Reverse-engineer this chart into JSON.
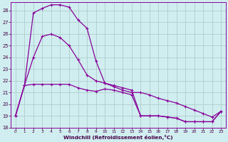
{
  "bg_color": "#d0eef0",
  "grid_color": "#b0cccc",
  "line_color": "#880099",
  "xlabel": "Windchill (Refroidissement éolien,°C)",
  "xlim": [
    -0.5,
    23.5
  ],
  "ylim": [
    18,
    28.7
  ],
  "yticks": [
    18,
    19,
    20,
    21,
    22,
    23,
    24,
    25,
    26,
    27,
    28
  ],
  "xticks": [
    0,
    1,
    2,
    3,
    4,
    5,
    6,
    7,
    8,
    9,
    10,
    11,
    12,
    13,
    14,
    15,
    16,
    17,
    18,
    19,
    20,
    21,
    22,
    23
  ],
  "series": [
    [
      19.0,
      21.6,
      21.7,
      21.7,
      21.7,
      21.7,
      21.7,
      21.4,
      21.2,
      21.1,
      21.3,
      21.2,
      21.0,
      20.8,
      19.0,
      19.0,
      19.0,
      18.9,
      18.8,
      18.5,
      18.5,
      18.5,
      18.5,
      19.4
    ],
    [
      19.0,
      21.6,
      27.8,
      28.2,
      28.5,
      28.5,
      28.3,
      27.2,
      26.5,
      23.7,
      21.8,
      21.5,
      21.2,
      21.0,
      21.0,
      20.8,
      20.5,
      20.3,
      20.1,
      19.8,
      19.5,
      19.2,
      18.9,
      19.4
    ],
    [
      19.0,
      21.6,
      24.0,
      25.8,
      26.0,
      25.7,
      25.0,
      23.8,
      22.5,
      22.0,
      21.8,
      21.6,
      21.4,
      21.2,
      19.0,
      19.0,
      19.0,
      18.9,
      18.8,
      18.5,
      18.5,
      18.5,
      18.5,
      19.4
    ]
  ]
}
